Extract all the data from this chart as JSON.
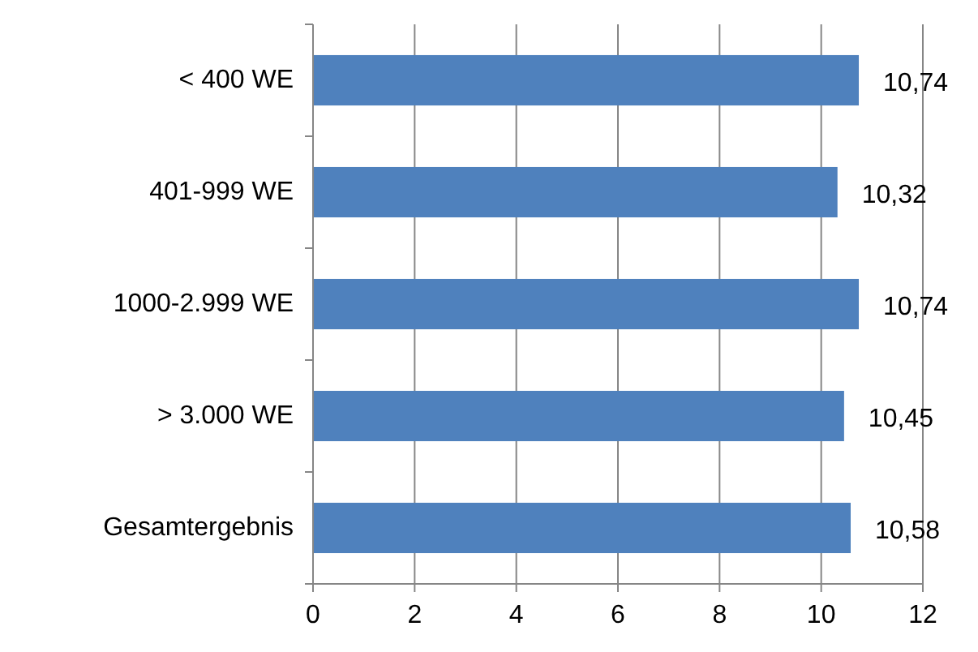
{
  "chart_data": {
    "type": "bar",
    "orientation": "horizontal",
    "categories": [
      "< 400 WE",
      "401-999 WE",
      "1000-2.999 WE",
      "> 3.000 WE",
      "Gesamtergebnis"
    ],
    "values": [
      10.74,
      10.32,
      10.74,
      10.45,
      10.58
    ],
    "value_labels": [
      "10,74",
      "10,32",
      "10,74",
      "10,45",
      "10,58"
    ],
    "color": "#4f81bd",
    "xlim": [
      0,
      12
    ],
    "xticks": [
      0,
      2,
      4,
      6,
      8,
      10,
      12
    ],
    "grid": "x"
  }
}
